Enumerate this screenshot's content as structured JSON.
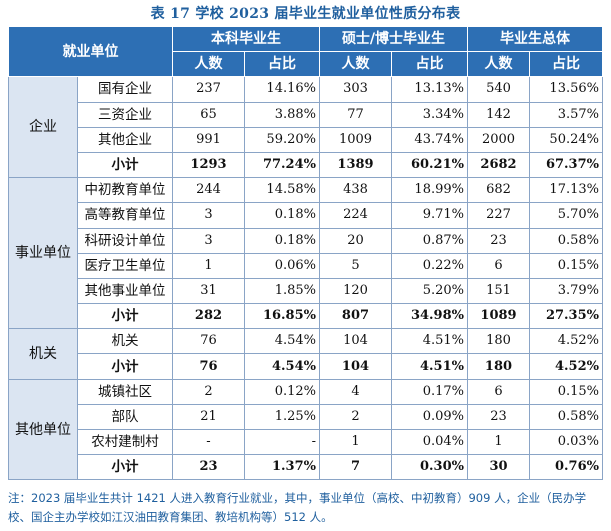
{
  "title": "表 17 学校 2023 届毕业生就业单位性质分布表",
  "header": {
    "unit": "就业单位",
    "groups": [
      "本科毕业生",
      "硕士/博士毕业生",
      "毕业生总体"
    ],
    "count": "人数",
    "ratio": "占比"
  },
  "sections": [
    {
      "category": "企业",
      "rows": [
        {
          "label": "国有企业",
          "v": [
            "237",
            "14.16%",
            "303",
            "13.13%",
            "540",
            "13.56%"
          ]
        },
        {
          "label": "三资企业",
          "v": [
            "65",
            "3.88%",
            "77",
            "3.34%",
            "142",
            "3.57%"
          ]
        },
        {
          "label": "其他企业",
          "v": [
            "991",
            "59.20%",
            "1009",
            "43.74%",
            "2000",
            "50.24%"
          ]
        }
      ],
      "subtotal": {
        "label": "小计",
        "v": [
          "1293",
          "77.24%",
          "1389",
          "60.21%",
          "2682",
          "67.37%"
        ]
      }
    },
    {
      "category": "事业单位",
      "rows": [
        {
          "label": "中初教育单位",
          "v": [
            "244",
            "14.58%",
            "438",
            "18.99%",
            "682",
            "17.13%"
          ]
        },
        {
          "label": "高等教育单位",
          "v": [
            "3",
            "0.18%",
            "224",
            "9.71%",
            "227",
            "5.70%"
          ]
        },
        {
          "label": "科研设计单位",
          "v": [
            "3",
            "0.18%",
            "20",
            "0.87%",
            "23",
            "0.58%"
          ]
        },
        {
          "label": "医疗卫生单位",
          "v": [
            "1",
            "0.06%",
            "5",
            "0.22%",
            "6",
            "0.15%"
          ]
        },
        {
          "label": "其他事业单位",
          "v": [
            "31",
            "1.85%",
            "120",
            "5.20%",
            "151",
            "3.79%"
          ]
        }
      ],
      "subtotal": {
        "label": "小计",
        "v": [
          "282",
          "16.85%",
          "807",
          "34.98%",
          "1089",
          "27.35%"
        ]
      }
    },
    {
      "category": "机关",
      "rows": [
        {
          "label": "机关",
          "v": [
            "76",
            "4.54%",
            "104",
            "4.51%",
            "180",
            "4.52%"
          ]
        }
      ],
      "subtotal": {
        "label": "小计",
        "v": [
          "76",
          "4.54%",
          "104",
          "4.51%",
          "180",
          "4.52%"
        ]
      }
    },
    {
      "category": "其他单位",
      "rows": [
        {
          "label": "城镇社区",
          "v": [
            "2",
            "0.12%",
            "4",
            "0.17%",
            "6",
            "0.15%"
          ]
        },
        {
          "label": "部队",
          "v": [
            "21",
            "1.25%",
            "2",
            "0.09%",
            "23",
            "0.58%"
          ]
        },
        {
          "label": "农村建制村",
          "v": [
            "-",
            "-",
            "1",
            "0.04%",
            "1",
            "0.03%"
          ]
        }
      ],
      "subtotal": {
        "label": "小计",
        "v": [
          "23",
          "1.37%",
          "7",
          "0.30%",
          "30",
          "0.76%"
        ]
      }
    }
  ],
  "note": "注：2023 届毕业生共计 1421 人进入教育行业就业，其中，事业单位（高校、中初教育）909 人，企业（民办学校、国企主办学校如江汉油田教育集团、教培机构等）512 人。"
}
